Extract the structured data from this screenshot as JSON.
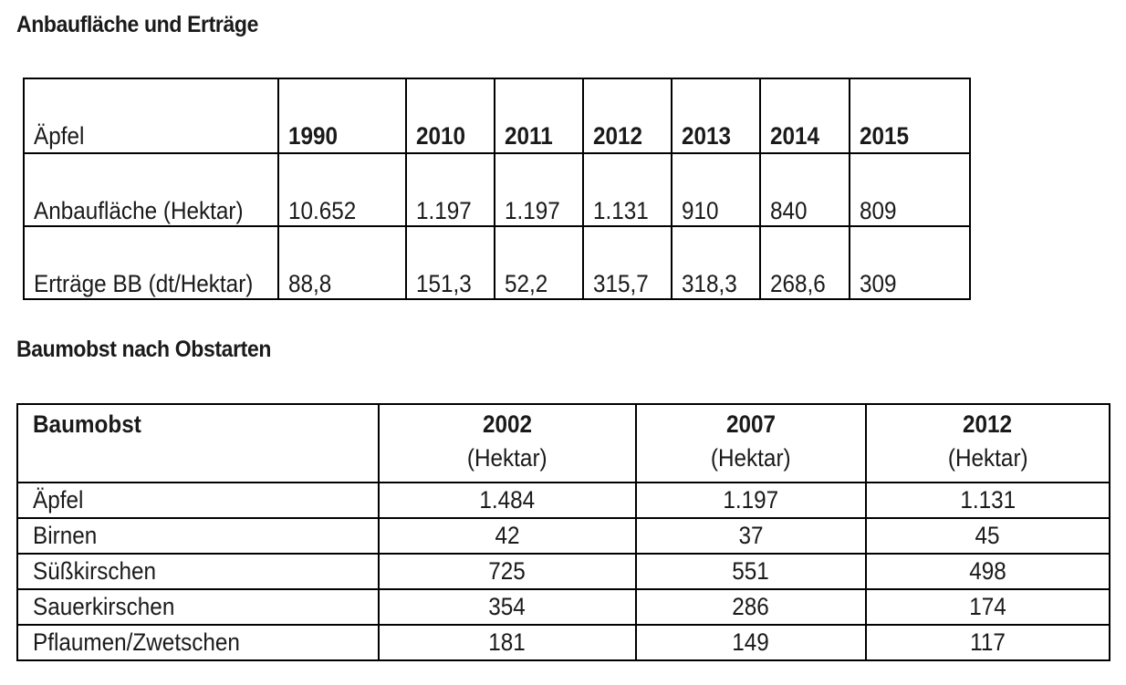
{
  "section1": {
    "heading": "Anbaufläche und Erträge",
    "header": {
      "label": "Äpfel",
      "years": [
        "1990",
        "2010",
        "2011",
        "2012",
        "2013",
        "2014",
        "2015"
      ]
    },
    "rows": [
      {
        "label": "Anbaufläche (Hektar)",
        "values": [
          "10.652",
          "1.197",
          "1.197",
          "1.131",
          "910",
          "840",
          "809"
        ]
      },
      {
        "label": "Erträge BB (dt/Hektar)",
        "values": [
          "88,8",
          "151,3",
          "52,2",
          "315,7",
          "318,3",
          "268,6",
          "309"
        ]
      }
    ]
  },
  "section2": {
    "heading": "Baumobst nach Obstarten",
    "header": {
      "label": "Baumobst",
      "columns": [
        {
          "year": "2002",
          "unit": "(Hektar)"
        },
        {
          "year": "2007",
          "unit": "(Hektar)"
        },
        {
          "year": "2012",
          "unit": "(Hektar)"
        }
      ]
    },
    "rows": [
      {
        "label": "Äpfel",
        "values": [
          "1.484",
          "1.197",
          "1.131"
        ]
      },
      {
        "label": "Birnen",
        "values": [
          "42",
          "37",
          "45"
        ]
      },
      {
        "label": "Süßkirschen",
        "values": [
          "725",
          "551",
          "498"
        ]
      },
      {
        "label": "Sauerkirschen",
        "values": [
          "354",
          "286",
          "174"
        ]
      },
      {
        "label": "Pflaumen/Zwetschen",
        "values": [
          "181",
          "149",
          "117"
        ]
      }
    ]
  }
}
